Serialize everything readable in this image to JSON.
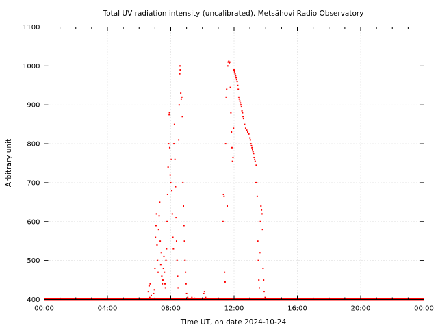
{
  "chart_data": {
    "type": "scatter",
    "title": "Total UV radiation intensity (uncalibrated). Metsähovi Radio Observatory",
    "xlabel": "Time UT, on date 2024-10-24",
    "ylabel": "Arbitrary unit",
    "xlim": [
      "00:00",
      "24:00"
    ],
    "ylim": [
      400,
      1100
    ],
    "x_ticks": [
      "00:00",
      "04:00",
      "08:00",
      "12:00",
      "16:00",
      "20:00",
      "00:00"
    ],
    "y_ticks": [
      400,
      500,
      600,
      700,
      800,
      900,
      1000,
      1100
    ],
    "grid": true,
    "marker_color": "#ff0000",
    "series": [
      {
        "baseline_value": 400,
        "points": [
          [
            "06:35",
            420
          ],
          [
            "06:38",
            435
          ],
          [
            "06:40",
            405
          ],
          [
            "06:42",
            440
          ],
          [
            "06:46",
            410
          ],
          [
            "06:50",
            402
          ],
          [
            "06:55",
            415
          ],
          [
            "06:58",
            425
          ],
          [
            "07:00",
            480
          ],
          [
            "07:02",
            560
          ],
          [
            "07:04",
            590
          ],
          [
            "07:06",
            620
          ],
          [
            "07:08",
            540
          ],
          [
            "07:10",
            500
          ],
          [
            "07:12",
            470
          ],
          [
            "07:14",
            580
          ],
          [
            "07:16",
            615
          ],
          [
            "07:18",
            650
          ],
          [
            "07:20",
            550
          ],
          [
            "07:22",
            490
          ],
          [
            "07:24",
            520
          ],
          [
            "07:26",
            460
          ],
          [
            "07:28",
            440
          ],
          [
            "07:30",
            450
          ],
          [
            "07:32",
            480
          ],
          [
            "07:34",
            510
          ],
          [
            "07:36",
            470
          ],
          [
            "07:38",
            440
          ],
          [
            "07:40",
            430
          ],
          [
            "07:42",
            500
          ],
          [
            "07:44",
            530
          ],
          [
            "07:46",
            600
          ],
          [
            "07:48",
            670
          ],
          [
            "07:50",
            740
          ],
          [
            "07:52",
            800
          ],
          [
            "07:54",
            875
          ],
          [
            "07:55",
            880
          ],
          [
            "07:56",
            790
          ],
          [
            "07:58",
            720
          ],
          [
            "08:00",
            700
          ],
          [
            "08:02",
            760
          ],
          [
            "08:04",
            680
          ],
          [
            "08:06",
            620
          ],
          [
            "08:08",
            560
          ],
          [
            "08:10",
            530
          ],
          [
            "08:12",
            800
          ],
          [
            "08:14",
            850
          ],
          [
            "08:16",
            760
          ],
          [
            "08:18",
            690
          ],
          [
            "08:20",
            610
          ],
          [
            "08:22",
            550
          ],
          [
            "08:24",
            500
          ],
          [
            "08:26",
            460
          ],
          [
            "08:28",
            430
          ],
          [
            "08:30",
            810
          ],
          [
            "08:32",
            900
          ],
          [
            "08:34",
            980
          ],
          [
            "08:35",
            1000
          ],
          [
            "08:36",
            990
          ],
          [
            "08:38",
            930
          ],
          [
            "08:40",
            915
          ],
          [
            "08:42",
            920
          ],
          [
            "08:44",
            870
          ],
          [
            "08:46",
            700
          ],
          [
            "08:48",
            640
          ],
          [
            "08:50",
            590
          ],
          [
            "08:52",
            550
          ],
          [
            "08:54",
            500
          ],
          [
            "08:56",
            470
          ],
          [
            "08:58",
            440
          ],
          [
            "09:00",
            415
          ],
          [
            "09:04",
            405
          ],
          [
            "09:10",
            402
          ],
          [
            "09:20",
            405
          ],
          [
            "09:30",
            403
          ],
          [
            "10:05",
            415
          ],
          [
            "10:08",
            420
          ],
          [
            "10:12",
            405
          ],
          [
            "11:18",
            600
          ],
          [
            "11:20",
            670
          ],
          [
            "11:22",
            665
          ],
          [
            "11:24",
            470
          ],
          [
            "11:26",
            445
          ],
          [
            "11:28",
            800
          ],
          [
            "11:30",
            920
          ],
          [
            "11:32",
            940
          ],
          [
            "11:34",
            640
          ],
          [
            "11:36",
            1000
          ],
          [
            "11:38",
            1010
          ],
          [
            "11:40",
            1012
          ],
          [
            "11:42",
            1008
          ],
          [
            "11:44",
            1010
          ],
          [
            "11:46",
            945
          ],
          [
            "11:48",
            880
          ],
          [
            "11:50",
            830
          ],
          [
            "11:52",
            790
          ],
          [
            "11:54",
            755
          ],
          [
            "11:56",
            765
          ],
          [
            "11:58",
            840
          ],
          [
            "12:00",
            990
          ],
          [
            "12:02",
            985
          ],
          [
            "12:04",
            980
          ],
          [
            "12:06",
            975
          ],
          [
            "12:08",
            970
          ],
          [
            "12:10",
            965
          ],
          [
            "12:12",
            960
          ],
          [
            "12:14",
            950
          ],
          [
            "12:16",
            940
          ],
          [
            "12:18",
            920
          ],
          [
            "12:20",
            915
          ],
          [
            "12:22",
            910
          ],
          [
            "12:24",
            905
          ],
          [
            "12:26",
            900
          ],
          [
            "12:28",
            895
          ],
          [
            "12:30",
            885
          ],
          [
            "12:32",
            880
          ],
          [
            "12:34",
            870
          ],
          [
            "12:36",
            865
          ],
          [
            "12:40",
            850
          ],
          [
            "12:44",
            840
          ],
          [
            "12:48",
            835
          ],
          [
            "12:52",
            830
          ],
          [
            "12:56",
            825
          ],
          [
            "13:00",
            815
          ],
          [
            "13:02",
            810
          ],
          [
            "13:04",
            800
          ],
          [
            "13:06",
            795
          ],
          [
            "13:08",
            790
          ],
          [
            "13:10",
            785
          ],
          [
            "13:12",
            780
          ],
          [
            "13:14",
            775
          ],
          [
            "13:16",
            765
          ],
          [
            "13:18",
            760
          ],
          [
            "13:20",
            755
          ],
          [
            "13:22",
            700
          ],
          [
            "13:24",
            745
          ],
          [
            "13:26",
            700
          ],
          [
            "13:28",
            665
          ],
          [
            "13:30",
            550
          ],
          [
            "13:32",
            500
          ],
          [
            "13:34",
            450
          ],
          [
            "13:36",
            430
          ],
          [
            "13:38",
            520
          ],
          [
            "13:40",
            600
          ],
          [
            "13:42",
            640
          ],
          [
            "13:44",
            630
          ],
          [
            "13:46",
            620
          ],
          [
            "13:48",
            580
          ],
          [
            "13:50",
            480
          ],
          [
            "13:52",
            450
          ],
          [
            "13:54",
            420
          ],
          [
            "13:58",
            405
          ],
          [
            "14:02",
            402
          ]
        ]
      }
    ]
  }
}
